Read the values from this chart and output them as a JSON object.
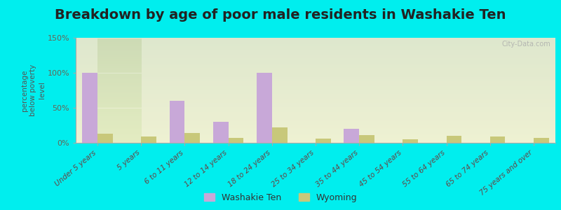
{
  "title": "Breakdown by age of poor male residents in Washakie Ten",
  "categories": [
    "Under 5 years",
    "5 years",
    "6 to 11 years",
    "12 to 14 years",
    "18 to 24 years",
    "25 to 34 years",
    "35 to 44 years",
    "45 to 54 years",
    "55 to 64 years",
    "65 to 74 years",
    "75 years and over"
  ],
  "washakie_values": [
    100,
    0,
    60,
    30,
    100,
    0,
    20,
    0,
    0,
    0,
    0
  ],
  "wyoming_values": [
    13,
    9,
    14,
    7,
    22,
    6,
    11,
    5,
    10,
    9,
    7
  ],
  "washakie_color": "#c8a8d8",
  "wyoming_color": "#c8c87a",
  "ylabel": "percentage\nbelow poverty\nlevel",
  "ylim": [
    0,
    150
  ],
  "yticks": [
    0,
    50,
    100,
    150
  ],
  "ytick_labels": [
    "0%",
    "50%",
    "100%",
    "150%"
  ],
  "outer_bg": "#00eeee",
  "title_fontsize": 14,
  "bar_width": 0.35,
  "watermark": "City-Data.com"
}
